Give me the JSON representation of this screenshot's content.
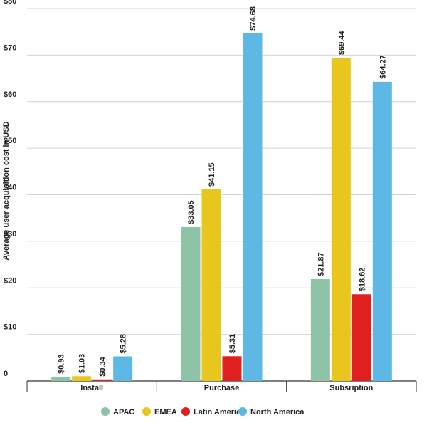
{
  "chart_data": {
    "type": "bar",
    "y_label": "Average user acquisition cost in USD",
    "categories": [
      "Install",
      "Purchase",
      "Subsription"
    ],
    "series": [
      {
        "name": "APAC",
        "color": "#8dc3a7",
        "values": [
          0.93,
          33.05,
          21.87
        ],
        "value_labels": [
          "$0.93",
          "$33.05",
          "$21.87"
        ]
      },
      {
        "name": "EMEA",
        "color": "#e8c61e",
        "values": [
          1.03,
          41.15,
          69.44
        ],
        "value_labels": [
          "$1.03",
          "$41.15",
          "$69.44"
        ]
      },
      {
        "name": "Latin America",
        "color": "#e0201f",
        "values": [
          0.34,
          5.31,
          18.62
        ],
        "value_labels": [
          "$0.34",
          "$5.31",
          "$18.62"
        ]
      },
      {
        "name": "North America",
        "color": "#5db8e6",
        "values": [
          5.28,
          74.68,
          64.27
        ],
        "value_labels": [
          "$5.28",
          "$74.68",
          "$64.27"
        ]
      }
    ],
    "ylim": [
      0,
      80
    ],
    "yticks": [
      0,
      {
        "value": 10,
        "label": "$10"
      },
      {
        "value": 20,
        "label": "$20"
      },
      {
        "value": 30,
        "label": "$30"
      },
      {
        "value": 40,
        "label": "$40"
      },
      {
        "value": 50,
        "label": "$50"
      },
      {
        "value": 60,
        "label": "$60"
      },
      {
        "value": 70,
        "label": "$70"
      },
      {
        "value": 80,
        "label": "$80"
      }
    ],
    "grid": true,
    "legend": "bottom"
  }
}
